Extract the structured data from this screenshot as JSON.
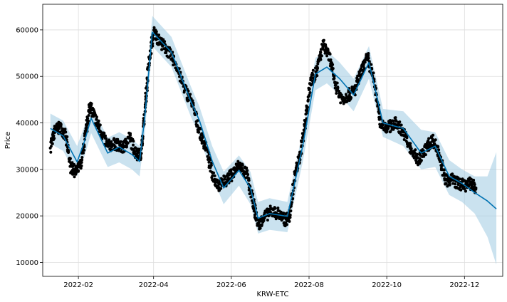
{
  "chart_data": {
    "type": "line",
    "title": "",
    "xlabel": "KRW-ETC",
    "ylabel": "Price",
    "x_range": [
      "2022-01-04",
      "2022-12-31"
    ],
    "ylim": [
      7000,
      65500
    ],
    "x_ticks": [
      "2022-02",
      "2022-04",
      "2022-06",
      "2022-08",
      "2022-10",
      "2022-12"
    ],
    "x_tick_dates": [
      "2022-02-01",
      "2022-04-01",
      "2022-06-01",
      "2022-08-01",
      "2022-10-01",
      "2022-12-01"
    ],
    "y_ticks": [
      10000,
      20000,
      30000,
      40000,
      50000,
      60000
    ],
    "y_tick_labels": [
      "10000",
      "20000",
      "30000",
      "40000",
      "50000",
      "60000"
    ],
    "grid": true,
    "legend": "none",
    "colors": {
      "forecast": "#0072B2",
      "interval": "#9ecae1",
      "observed": "#000000"
    },
    "series": [
      {
        "kind": "forecast",
        "x": [
          "2022-01-10",
          "2022-01-20",
          "2022-01-31",
          "2022-02-06",
          "2022-02-11",
          "2022-02-24",
          "2022-03-05",
          "2022-03-15",
          "2022-03-21",
          "2022-03-25",
          "2022-03-31",
          "2022-04-15",
          "2022-04-30",
          "2022-05-07",
          "2022-05-17",
          "2022-05-26",
          "2022-06-07",
          "2022-06-16",
          "2022-06-22",
          "2022-07-01",
          "2022-07-15",
          "2022-07-27",
          "2022-08-06",
          "2022-08-15",
          "2022-08-25",
          "2022-09-05",
          "2022-09-17",
          "2022-09-28",
          "2022-10-14",
          "2022-10-28",
          "2022-11-08",
          "2022-11-19",
          "2022-11-29",
          "2022-12-09",
          "2022-12-19",
          "2022-12-26"
        ],
        "y": [
          38800,
          37200,
          31600,
          36200,
          41000,
          33500,
          34800,
          33200,
          31700,
          41000,
          59500,
          55200,
          44800,
          40500,
          31800,
          26000,
          29800,
          26000,
          19500,
          20500,
          19900,
          35000,
          50500,
          52000,
          49500,
          46000,
          53000,
          40000,
          38800,
          33500,
          35000,
          28500,
          27000,
          25000,
          23200,
          21500
        ]
      },
      {
        "kind": "interval-upper",
        "x": [
          "2022-01-10",
          "2022-01-20",
          "2022-01-31",
          "2022-02-06",
          "2022-02-11",
          "2022-02-24",
          "2022-03-05",
          "2022-03-15",
          "2022-03-21",
          "2022-03-25",
          "2022-03-31",
          "2022-04-15",
          "2022-04-30",
          "2022-05-07",
          "2022-05-17",
          "2022-05-26",
          "2022-06-07",
          "2022-06-16",
          "2022-06-22",
          "2022-07-01",
          "2022-07-15",
          "2022-07-27",
          "2022-08-06",
          "2022-08-15",
          "2022-08-25",
          "2022-09-05",
          "2022-09-17",
          "2022-09-28",
          "2022-10-14",
          "2022-10-28",
          "2022-11-08",
          "2022-11-19",
          "2022-11-29",
          "2022-12-09",
          "2022-12-19",
          "2022-12-26"
        ],
        "y": [
          42000,
          40500,
          35000,
          39500,
          44000,
          36800,
          38000,
          36500,
          35000,
          44500,
          63000,
          58500,
          48000,
          43500,
          35000,
          29500,
          33000,
          29500,
          23000,
          23800,
          23000,
          38000,
          54000,
          55500,
          53000,
          49500,
          56500,
          43000,
          42500,
          38500,
          38000,
          32000,
          30000,
          28500,
          28500,
          33700
        ]
      },
      {
        "kind": "interval-lower",
        "x": [
          "2022-01-10",
          "2022-01-20",
          "2022-01-31",
          "2022-02-06",
          "2022-02-11",
          "2022-02-24",
          "2022-03-05",
          "2022-03-15",
          "2022-03-21",
          "2022-03-25",
          "2022-03-31",
          "2022-04-15",
          "2022-04-30",
          "2022-05-07",
          "2022-05-17",
          "2022-05-26",
          "2022-06-07",
          "2022-06-16",
          "2022-06-22",
          "2022-07-01",
          "2022-07-15",
          "2022-07-27",
          "2022-08-06",
          "2022-08-15",
          "2022-08-25",
          "2022-09-05",
          "2022-09-17",
          "2022-09-28",
          "2022-10-14",
          "2022-10-28",
          "2022-11-08",
          "2022-11-19",
          "2022-11-29",
          "2022-12-09",
          "2022-12-19",
          "2022-12-26"
        ],
        "y": [
          35500,
          34000,
          28500,
          33000,
          37800,
          30500,
          31500,
          30000,
          28500,
          37500,
          56500,
          52000,
          41500,
          37200,
          28500,
          22500,
          26500,
          22500,
          16200,
          17000,
          16500,
          31500,
          47000,
          48500,
          46000,
          42500,
          49500,
          37000,
          35000,
          30000,
          30500,
          24500,
          23000,
          20500,
          15500,
          9500
        ]
      },
      {
        "kind": "observed-trace",
        "x": [
          "2022-01-10",
          "2022-01-14",
          "2022-01-18",
          "2022-01-22",
          "2022-01-26",
          "2022-01-30",
          "2022-02-03",
          "2022-02-07",
          "2022-02-10",
          "2022-02-14",
          "2022-02-19",
          "2022-02-24",
          "2022-03-02",
          "2022-03-08",
          "2022-03-13",
          "2022-03-18",
          "2022-03-22",
          "2022-03-25",
          "2022-03-28",
          "2022-04-01",
          "2022-04-06",
          "2022-04-12",
          "2022-04-18",
          "2022-04-25",
          "2022-05-01",
          "2022-05-07",
          "2022-05-12",
          "2022-05-17",
          "2022-05-22",
          "2022-05-27",
          "2022-06-02",
          "2022-06-07",
          "2022-06-13",
          "2022-06-18",
          "2022-06-22",
          "2022-06-26",
          "2022-07-02",
          "2022-07-08",
          "2022-07-13",
          "2022-07-17",
          "2022-07-21",
          "2022-07-25",
          "2022-07-29",
          "2022-08-02",
          "2022-08-07",
          "2022-08-12",
          "2022-08-17",
          "2022-08-22",
          "2022-08-27",
          "2022-09-01",
          "2022-09-06",
          "2022-09-11",
          "2022-09-16",
          "2022-09-21",
          "2022-09-26",
          "2022-10-02",
          "2022-10-08",
          "2022-10-14",
          "2022-10-20",
          "2022-10-26",
          "2022-11-01",
          "2022-11-06",
          "2022-11-11",
          "2022-11-16",
          "2022-11-21",
          "2022-11-26",
          "2022-12-01",
          "2022-12-06",
          "2022-12-10"
        ],
        "y": [
          35000,
          38500,
          39000,
          37000,
          30500,
          29500,
          31000,
          38000,
          44000,
          41000,
          38000,
          35000,
          35500,
          34500,
          37000,
          33500,
          33000,
          42000,
          52000,
          59500,
          57500,
          55500,
          53000,
          47500,
          44500,
          38000,
          35000,
          29000,
          26500,
          27500,
          29000,
          31000,
          29000,
          23000,
          18000,
          19500,
          21000,
          20500,
          19000,
          20000,
          29000,
          33000,
          40000,
          49000,
          51000,
          57000,
          54000,
          48000,
          45000,
          46000,
          47000,
          51000,
          54000,
          49000,
          40000,
          39000,
          40000,
          38000,
          34000,
          32000,
          34500,
          36500,
          33500,
          27500,
          28000,
          27000,
          26500,
          27000,
          26000
        ]
      }
    ]
  }
}
